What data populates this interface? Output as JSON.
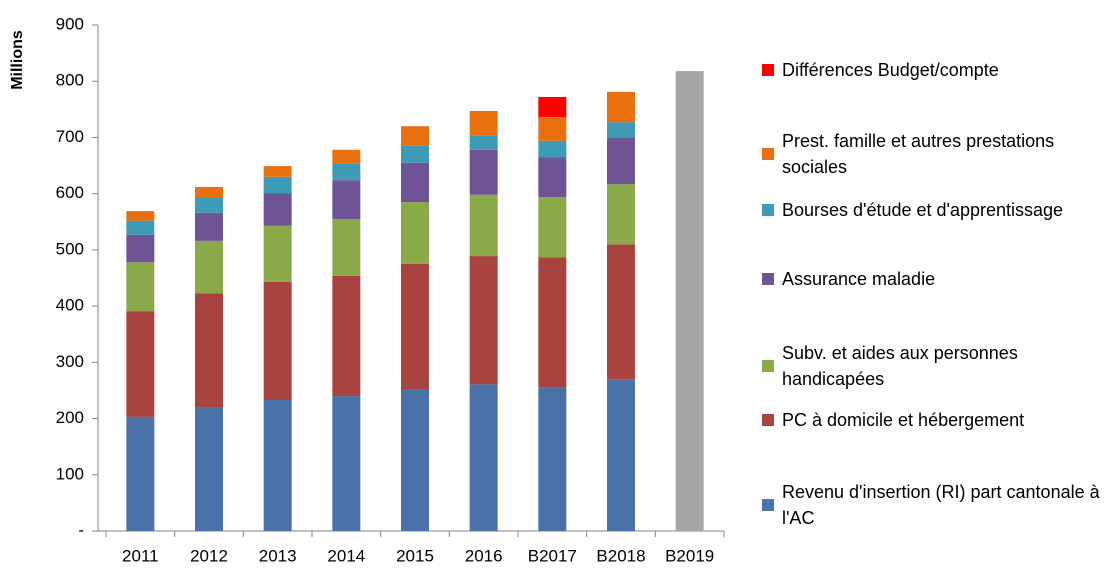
{
  "chart_data": {
    "type": "stacked-bar",
    "y_label": "Millions",
    "categories": [
      "2011",
      "2012",
      "2013",
      "2014",
      "2015",
      "2016",
      "B2017",
      "B2018",
      "B2019"
    ],
    "series": [
      {
        "name": "Revenu d'insertion (RI) part cantonale à l'AC",
        "color": "#4a72a8",
        "values": [
          203,
          219,
          233,
          240,
          251,
          261,
          256,
          270,
          null
        ]
      },
      {
        "name": "PC à domicile et hébergement",
        "color": "#a84340",
        "values": [
          188,
          204,
          210,
          214,
          224,
          228,
          231,
          240,
          null
        ]
      },
      {
        "name": "Subv. et aides aux personnes handicapées",
        "color": "#8aaa4a",
        "values": [
          87,
          93,
          100,
          101,
          110,
          109,
          107,
          107,
          null
        ]
      },
      {
        "name": "Assurance maladie",
        "color": "#6e5494",
        "values": [
          49,
          50,
          58,
          69,
          70,
          80,
          71,
          82,
          null
        ]
      },
      {
        "name": "Bourses d'étude et d'apprentissage",
        "color": "#3e9bb5",
        "values": [
          25,
          28,
          29,
          30,
          30,
          25,
          29,
          28,
          null
        ]
      },
      {
        "name": "Prest. famille et autres prestations sociales",
        "color": "#e9700f",
        "values": [
          17,
          18,
          19,
          24,
          35,
          44,
          42,
          54,
          null
        ]
      },
      {
        "name": "Différences Budget/compte",
        "color": "#ff0000",
        "values": [
          null,
          null,
          null,
          null,
          null,
          null,
          36,
          null,
          null
        ]
      },
      {
        "color": "#a6a6a6",
        "values": [
          null,
          null,
          null,
          null,
          null,
          null,
          null,
          null,
          818
        ]
      }
    ],
    "ylim": [
      0,
      900
    ],
    "yticks": [
      {
        "value": 0,
        "label": "-"
      },
      100,
      200,
      300,
      400,
      500,
      600,
      700,
      800,
      900
    ],
    "grid": false
  }
}
